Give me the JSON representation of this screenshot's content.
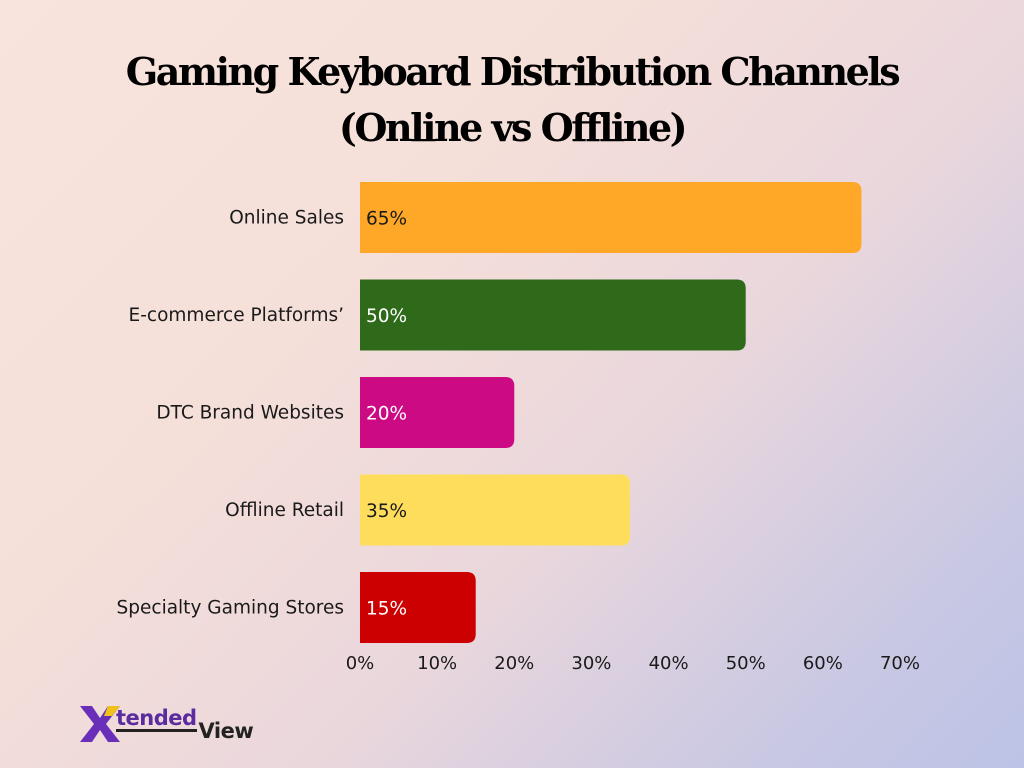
{
  "title_lines": [
    "Gaming Keyboard Distribution Channels",
    "(Online vs Offline)"
  ],
  "chart_data": {
    "type": "bar",
    "orientation": "horizontal",
    "categories": [
      "Online Sales",
      "E-commerce Platforms’",
      "DTC Brand Websites",
      "Offline Retail",
      "Specialty Gaming Stores"
    ],
    "values": [
      65,
      50,
      20,
      35,
      15
    ],
    "value_labels": [
      "65%",
      "50%",
      "20%",
      "35%",
      "15%"
    ],
    "colors": [
      "#ffa726",
      "#2e6a1a",
      "#cc0a84",
      "#ffdd5c",
      "#cc0000"
    ],
    "value_label_colors": [
      "#1a1a1a",
      "#ffffff",
      "#ffffff",
      "#1a1a1a",
      "#ffffff"
    ],
    "xlim": [
      0,
      70
    ],
    "xticks": [
      0,
      10,
      20,
      30,
      40,
      50,
      60,
      70
    ],
    "xtick_labels": [
      "0%",
      "10%",
      "20%",
      "30%",
      "40%",
      "50%",
      "60%",
      "70%"
    ],
    "grid": false,
    "legend": "none",
    "title": "Gaming Keyboard Distribution Channels (Online vs Offline)"
  },
  "logo": {
    "part1": "tended",
    "part2": "View"
  }
}
